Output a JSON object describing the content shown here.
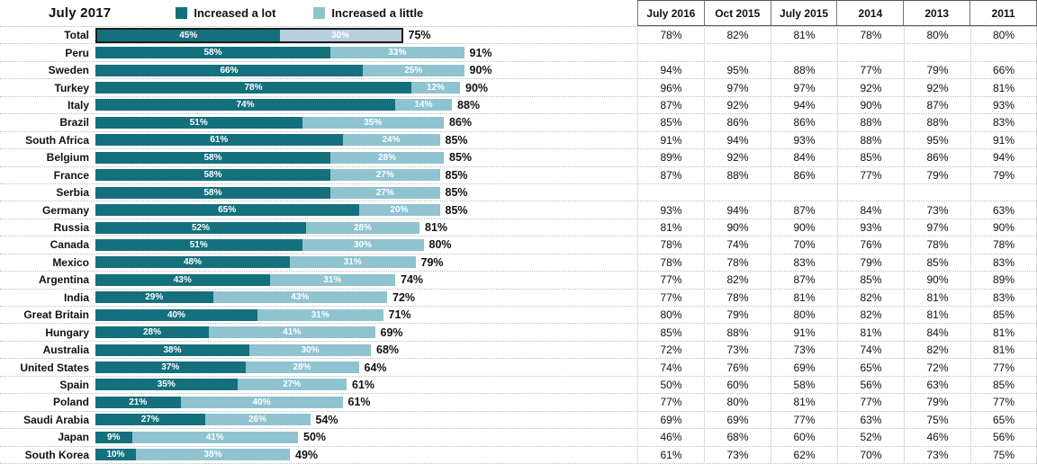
{
  "chart": {
    "period_label": "July 2017",
    "legend": [
      {
        "label": "Increased a lot",
        "color": "#15707d"
      },
      {
        "label": "Increased a little",
        "color": "#8fc3cf"
      }
    ],
    "table_headers": [
      "July 2016",
      "Oct 2015",
      "July 2015",
      "2014",
      "2013",
      "2011"
    ],
    "rows": [
      {
        "label": "Total",
        "a_lot": "45%",
        "a_little": "30%",
        "total": "75%",
        "highlight": true,
        "a_little_color": "#b6cedd",
        "history": [
          "78%",
          "82%",
          "81%",
          "78%",
          "80%",
          "80%"
        ]
      },
      {
        "label": "Peru",
        "a_lot": "58%",
        "a_little": "33%",
        "total": "91%",
        "history": [
          "",
          "",
          "",
          "",
          "",
          ""
        ]
      },
      {
        "label": "Sweden",
        "a_lot": "66%",
        "a_little": "25%",
        "total": "90%",
        "history": [
          "94%",
          "95%",
          "88%",
          "77%",
          "79%",
          "66%"
        ]
      },
      {
        "label": "Turkey",
        "a_lot": "78%",
        "a_little": "12%",
        "total": "90%",
        "history": [
          "96%",
          "97%",
          "97%",
          "92%",
          "92%",
          "81%"
        ]
      },
      {
        "label": "Italy",
        "a_lot": "74%",
        "a_little": "14%",
        "total": "88%",
        "history": [
          "87%",
          "92%",
          "94%",
          "90%",
          "87%",
          "93%"
        ]
      },
      {
        "label": "Brazil",
        "a_lot": "51%",
        "a_little": "35%",
        "total": "86%",
        "history": [
          "85%",
          "86%",
          "86%",
          "88%",
          "88%",
          "83%"
        ]
      },
      {
        "label": "South Africa",
        "a_lot": "61%",
        "a_little": "24%",
        "total": "85%",
        "history": [
          "91%",
          "94%",
          "93%",
          "88%",
          "95%",
          "91%"
        ]
      },
      {
        "label": "Belgium",
        "a_lot": "58%",
        "a_little": "28%",
        "total": "85%",
        "history": [
          "89%",
          "92%",
          "84%",
          "85%",
          "86%",
          "94%"
        ]
      },
      {
        "label": "France",
        "a_lot": "58%",
        "a_little": "27%",
        "total": "85%",
        "history": [
          "87%",
          "88%",
          "86%",
          "77%",
          "79%",
          "79%"
        ]
      },
      {
        "label": "Serbia",
        "a_lot": "58%",
        "a_little": "27%",
        "total": "85%",
        "history": [
          "",
          "",
          "",
          "",
          "",
          ""
        ]
      },
      {
        "label": "Germany",
        "a_lot": "65%",
        "a_little": "20%",
        "total": "85%",
        "history": [
          "93%",
          "94%",
          "87%",
          "84%",
          "73%",
          "63%"
        ]
      },
      {
        "label": "Russia",
        "a_lot": "52%",
        "a_little": "28%",
        "total": "81%",
        "history": [
          "81%",
          "90%",
          "90%",
          "93%",
          "97%",
          "90%"
        ]
      },
      {
        "label": "Canada",
        "a_lot": "51%",
        "a_little": "30%",
        "total": "80%",
        "history": [
          "78%",
          "74%",
          "70%",
          "76%",
          "78%",
          "78%"
        ]
      },
      {
        "label": "Mexico",
        "a_lot": "48%",
        "a_little": "31%",
        "total": "79%",
        "history": [
          "78%",
          "78%",
          "83%",
          "79%",
          "85%",
          "83%"
        ]
      },
      {
        "label": "Argentina",
        "a_lot": "43%",
        "a_little": "31%",
        "total": "74%",
        "history": [
          "77%",
          "82%",
          "87%",
          "85%",
          "90%",
          "89%"
        ]
      },
      {
        "label": "India",
        "a_lot": "29%",
        "a_little": "43%",
        "total": "72%",
        "history": [
          "77%",
          "78%",
          "81%",
          "82%",
          "81%",
          "83%"
        ]
      },
      {
        "label": "Great Britain",
        "a_lot": "40%",
        "a_little": "31%",
        "total": "71%",
        "history": [
          "80%",
          "79%",
          "80%",
          "82%",
          "81%",
          "85%"
        ]
      },
      {
        "label": "Hungary",
        "a_lot": "28%",
        "a_little": "41%",
        "total": "69%",
        "history": [
          "85%",
          "88%",
          "91%",
          "81%",
          "84%",
          "81%"
        ]
      },
      {
        "label": "Australia",
        "a_lot": "38%",
        "a_little": "30%",
        "total": "68%",
        "history": [
          "72%",
          "73%",
          "73%",
          "74%",
          "82%",
          "81%"
        ]
      },
      {
        "label": "United States",
        "a_lot": "37%",
        "a_little": "28%",
        "total": "64%",
        "history": [
          "74%",
          "76%",
          "69%",
          "65%",
          "72%",
          "77%"
        ]
      },
      {
        "label": "Spain",
        "a_lot": "35%",
        "a_little": "27%",
        "total": "61%",
        "history": [
          "50%",
          "60%",
          "58%",
          "56%",
          "63%",
          "85%"
        ]
      },
      {
        "label": "Poland",
        "a_lot": "21%",
        "a_little": "40%",
        "total": "61%",
        "history": [
          "77%",
          "80%",
          "81%",
          "77%",
          "79%",
          "77%"
        ]
      },
      {
        "label": "Saudi Arabia",
        "a_lot": "27%",
        "a_little": "26%",
        "total": "54%",
        "history": [
          "69%",
          "69%",
          "77%",
          "63%",
          "75%",
          "65%"
        ]
      },
      {
        "label": "Japan",
        "a_lot": "9%",
        "a_little": "41%",
        "total": "50%",
        "history": [
          "46%",
          "68%",
          "60%",
          "52%",
          "46%",
          "56%"
        ]
      },
      {
        "label": "South Korea",
        "a_lot": "10%",
        "a_little": "38%",
        "total": "49%",
        "history": [
          "61%",
          "73%",
          "62%",
          "70%",
          "73%",
          "75%"
        ]
      }
    ]
  },
  "chart_data": {
    "type": "bar",
    "orientation": "horizontal",
    "stacked": true,
    "title": "July 2017",
    "legend_position": "top",
    "categories": [
      "Total",
      "Peru",
      "Sweden",
      "Turkey",
      "Italy",
      "Brazil",
      "South Africa",
      "Belgium",
      "France",
      "Serbia",
      "Germany",
      "Russia",
      "Canada",
      "Mexico",
      "Argentina",
      "India",
      "Great Britain",
      "Hungary",
      "Australia",
      "United States",
      "Spain",
      "Poland",
      "Saudi Arabia",
      "Japan",
      "South Korea"
    ],
    "series": [
      {
        "name": "Increased a lot",
        "color": "#15707d",
        "values": [
          45,
          58,
          66,
          78,
          74,
          51,
          61,
          58,
          58,
          58,
          65,
          52,
          51,
          48,
          43,
          29,
          40,
          28,
          38,
          37,
          35,
          21,
          27,
          9,
          10
        ]
      },
      {
        "name": "Increased a little",
        "color": "#8fc3cf",
        "values": [
          30,
          33,
          25,
          12,
          14,
          35,
          24,
          28,
          27,
          27,
          20,
          28,
          30,
          31,
          31,
          43,
          31,
          41,
          30,
          28,
          27,
          40,
          26,
          41,
          38
        ]
      }
    ],
    "totals_labels": [
      75,
      91,
      90,
      90,
      88,
      86,
      85,
      85,
      85,
      85,
      85,
      81,
      80,
      79,
      74,
      72,
      71,
      69,
      68,
      64,
      61,
      61,
      54,
      50,
      49
    ],
    "xlim": [
      0,
      100
    ],
    "grid": false,
    "history_table": {
      "columns": [
        "July 2016",
        "Oct 2015",
        "July 2015",
        "2014",
        "2013",
        "2011"
      ],
      "rows": {
        "Total": [
          78,
          82,
          81,
          78,
          80,
          80
        ],
        "Peru": [
          null,
          null,
          null,
          null,
          null,
          null
        ],
        "Sweden": [
          94,
          95,
          88,
          77,
          79,
          66
        ],
        "Turkey": [
          96,
          97,
          97,
          92,
          92,
          81
        ],
        "Italy": [
          87,
          92,
          94,
          90,
          87,
          93
        ],
        "Brazil": [
          85,
          86,
          86,
          88,
          88,
          83
        ],
        "South Africa": [
          91,
          94,
          93,
          88,
          95,
          91
        ],
        "Belgium": [
          89,
          92,
          84,
          85,
          86,
          94
        ],
        "France": [
          87,
          88,
          86,
          77,
          79,
          79
        ],
        "Serbia": [
          null,
          null,
          null,
          null,
          null,
          null
        ],
        "Germany": [
          93,
          94,
          87,
          84,
          73,
          63
        ],
        "Russia": [
          81,
          90,
          90,
          93,
          97,
          90
        ],
        "Canada": [
          78,
          74,
          70,
          76,
          78,
          78
        ],
        "Mexico": [
          78,
          78,
          83,
          79,
          85,
          83
        ],
        "Argentina": [
          77,
          82,
          87,
          85,
          90,
          89
        ],
        "India": [
          77,
          78,
          81,
          82,
          81,
          83
        ],
        "Great Britain": [
          80,
          79,
          80,
          82,
          81,
          85
        ],
        "Hungary": [
          85,
          88,
          91,
          81,
          84,
          81
        ],
        "Australia": [
          72,
          73,
          73,
          74,
          82,
          81
        ],
        "United States": [
          74,
          76,
          69,
          65,
          72,
          77
        ],
        "Spain": [
          50,
          60,
          58,
          56,
          63,
          85
        ],
        "Poland": [
          77,
          80,
          81,
          77,
          79,
          77
        ],
        "Saudi Arabia": [
          69,
          69,
          77,
          63,
          75,
          65
        ],
        "Japan": [
          46,
          68,
          60,
          52,
          46,
          56
        ],
        "South Korea": [
          61,
          73,
          62,
          70,
          73,
          75
        ]
      }
    }
  }
}
